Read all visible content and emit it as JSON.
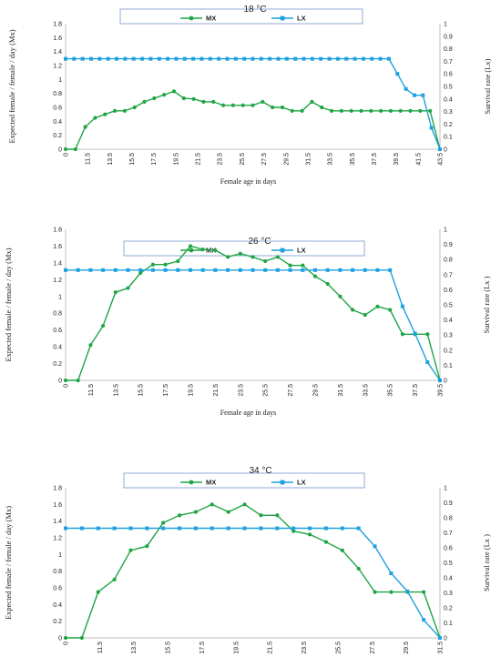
{
  "chart_data": [
    {
      "type": "line",
      "title": "18 °C",
      "xlabel": "Female  age in days",
      "ylabel": "Expected female / female / day (Mx)",
      "y2label": "Survival  rate (Lx)",
      "legend": [
        "MX",
        "LX"
      ],
      "legend_position": "top",
      "ylim": [
        0,
        1.8
      ],
      "y_ticks": [
        "0",
        "0.2",
        "0.4",
        "0.6",
        "0.8",
        "1",
        "1.2",
        "1.4",
        "1.6",
        "1.8"
      ],
      "y2lim": [
        0,
        1
      ],
      "y2_ticks": [
        "0",
        "0.1",
        "0.2",
        "0.3",
        "0.4",
        "0.5",
        "0.6",
        "0.7",
        "0.8",
        "0.9",
        "1"
      ],
      "x_ticks": [
        "0",
        "11.5",
        "13.5",
        "15.5",
        "17.5",
        "19.5",
        "21.5",
        "23.5",
        "25.5",
        "27.5",
        "29.5",
        "31.5",
        "33.5",
        "35.5",
        "37.5",
        "39.5",
        "41.5",
        "43.5"
      ],
      "series": [
        {
          "name": "MX",
          "color": "#1fa544",
          "axis": "left",
          "values": [
            0,
            0,
            0.32,
            0.45,
            0.5,
            0.55,
            0.55,
            0.6,
            0.68,
            0.73,
            0.78,
            0.83,
            0.73,
            0.72,
            0.68,
            0.68,
            0.63,
            0.63,
            0.63,
            0.63,
            0.68,
            0.6,
            0.6,
            0.55,
            0.55,
            0.68,
            0.6,
            0.55,
            0.55,
            0.55,
            0.55,
            0.55,
            0.55,
            0.55,
            0.55,
            0.55,
            0.55,
            0.55,
            0.0
          ]
        },
        {
          "name": "LX",
          "color": "#1ea0e0",
          "axis": "right",
          "values": [
            0.72,
            0.72,
            0.72,
            0.72,
            0.72,
            0.72,
            0.72,
            0.72,
            0.72,
            0.72,
            0.72,
            0.72,
            0.72,
            0.72,
            0.72,
            0.72,
            0.72,
            0.72,
            0.72,
            0.72,
            0.72,
            0.72,
            0.72,
            0.72,
            0.72,
            0.72,
            0.72,
            0.72,
            0.72,
            0.72,
            0.72,
            0.72,
            0.72,
            0.72,
            0.72,
            0.72,
            0.72,
            0.72,
            0.72,
            0.6,
            0.48,
            0.43,
            0.43,
            0.17,
            0.0
          ]
        }
      ]
    },
    {
      "type": "line",
      "title": "26 °C",
      "xlabel": "Female  age in days",
      "ylabel": "Expected female / female / day (Mx)",
      "y2label": "Survival  rate (Lx )",
      "legend": [
        "MX",
        "LX"
      ],
      "legend_position": "top",
      "ylim": [
        0,
        1.8
      ],
      "y_ticks": [
        "0",
        "0.2",
        "0.4",
        "0.6",
        "0.8",
        "1",
        "1.2",
        "1.4",
        "1.6",
        "1.8"
      ],
      "y2lim": [
        0,
        1
      ],
      "y2_ticks": [
        "0",
        "0.1",
        "0.2",
        "0.3",
        "0.4",
        "0.5",
        "0.6",
        "0.7",
        "0.8",
        "0.9",
        "1"
      ],
      "x_ticks": [
        "0",
        "11.5",
        "13.5",
        "15.5",
        "17.5",
        "19.5",
        "21.5",
        "23.5",
        "25.5",
        "27.5",
        "29.5",
        "31.5",
        "33.5",
        "35.5",
        "37.5",
        "39.5"
      ],
      "series": [
        {
          "name": "MX",
          "color": "#1fa544",
          "axis": "left",
          "values": [
            0,
            0,
            0.42,
            0.65,
            1.05,
            1.1,
            1.28,
            1.38,
            1.38,
            1.42,
            1.6,
            1.56,
            1.55,
            1.47,
            1.51,
            1.47,
            1.42,
            1.47,
            1.37,
            1.37,
            1.24,
            1.15,
            1.0,
            0.84,
            0.78,
            0.88,
            0.84,
            0.55,
            0.55,
            0.55,
            0.0
          ]
        },
        {
          "name": "LX",
          "color": "#1ea0e0",
          "axis": "right",
          "values": [
            0.73,
            0.73,
            0.73,
            0.73,
            0.73,
            0.73,
            0.73,
            0.73,
            0.73,
            0.73,
            0.73,
            0.73,
            0.73,
            0.73,
            0.73,
            0.73,
            0.73,
            0.73,
            0.73,
            0.73,
            0.73,
            0.73,
            0.73,
            0.73,
            0.73,
            0.73,
            0.73,
            0.49,
            0.31,
            0.12,
            0.0
          ]
        }
      ]
    },
    {
      "type": "line",
      "title": "34 °C",
      "xlabel": "Female  age in days",
      "ylabel": "Expected female / female / day (Mx)",
      "y2label": "Survival  rate (Lx )",
      "legend": [
        "MX",
        "LX"
      ],
      "legend_position": "top",
      "ylim": [
        0,
        1.8
      ],
      "y_ticks": [
        "0",
        "0.2",
        "0.4",
        "0.6",
        "0.8",
        "1",
        "1.2",
        "1.4",
        "1.6",
        "1.8"
      ],
      "y2lim": [
        0,
        1
      ],
      "y2_ticks": [
        "0",
        "0.1",
        "0.2",
        "0.3",
        "0.4",
        "0.5",
        "0.6",
        "0.7",
        "0.8",
        "0.9",
        "1"
      ],
      "x_ticks": [
        "0",
        "11.5",
        "13.5",
        "15.5",
        "17.5",
        "19.5",
        "21.5",
        "23.5",
        "25.5",
        "27.5",
        "29.5",
        "31.5"
      ],
      "series": [
        {
          "name": "MX",
          "color": "#1fa544",
          "axis": "left",
          "values": [
            0,
            0,
            0.55,
            0.7,
            1.05,
            1.1,
            1.38,
            1.47,
            1.51,
            1.6,
            1.51,
            1.6,
            1.47,
            1.47,
            1.28,
            1.24,
            1.15,
            1.05,
            0.83,
            0.55,
            0.55,
            0.55,
            0.55,
            0.0
          ]
        },
        {
          "name": "LX",
          "color": "#1ea0e0",
          "axis": "right",
          "values": [
            0.73,
            0.73,
            0.73,
            0.73,
            0.73,
            0.73,
            0.73,
            0.73,
            0.73,
            0.73,
            0.73,
            0.73,
            0.73,
            0.73,
            0.73,
            0.73,
            0.73,
            0.73,
            0.73,
            0.61,
            0.43,
            0.31,
            0.12,
            0.0
          ]
        }
      ]
    }
  ]
}
